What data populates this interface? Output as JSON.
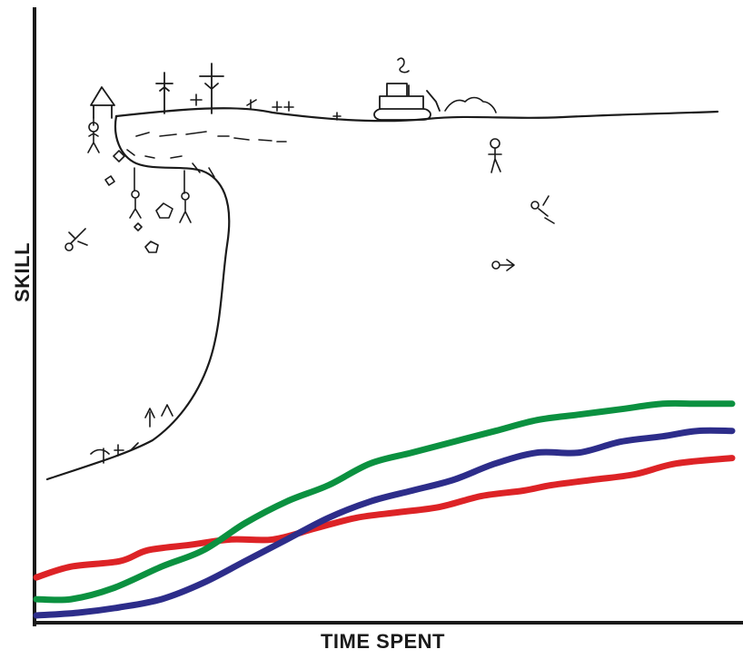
{
  "chart_data": {
    "type": "line",
    "title": "",
    "xlabel": "TIME SPENT",
    "ylabel": "SKILL",
    "xlim": [
      0,
      100
    ],
    "ylim": [
      0,
      100
    ],
    "grid": false,
    "legend": "none",
    "series": [
      {
        "color": "#dd2326",
        "x": [
          0,
          5,
          12,
          16,
          22,
          28,
          34,
          40,
          46,
          52,
          58,
          64,
          70,
          74,
          80,
          86,
          92,
          100
        ],
        "y": [
          7,
          9,
          10,
          12,
          13,
          14,
          14,
          16,
          18,
          19,
          20,
          22,
          23,
          24,
          25,
          26,
          28,
          29
        ]
      },
      {
        "color": "#0b9140",
        "x": [
          0,
          5,
          11,
          18,
          24,
          30,
          36,
          42,
          48,
          54,
          60,
          66,
          72,
          78,
          84,
          90,
          95,
          100
        ],
        "y": [
          3,
          3,
          5,
          9,
          12,
          17,
          21,
          24,
          28,
          30,
          32,
          34,
          36,
          37,
          38,
          39,
          39,
          39
        ]
      },
      {
        "color": "#2d2d8a",
        "x": [
          0,
          6,
          12,
          18,
          24,
          30,
          36,
          42,
          48,
          54,
          60,
          66,
          72,
          78,
          84,
          90,
          95,
          100
        ],
        "y": [
          0,
          0.5,
          1.5,
          3,
          6,
          10,
          14,
          18,
          21,
          23,
          25,
          28,
          30,
          30,
          32,
          33,
          34,
          34
        ]
      }
    ],
    "annotations": []
  }
}
